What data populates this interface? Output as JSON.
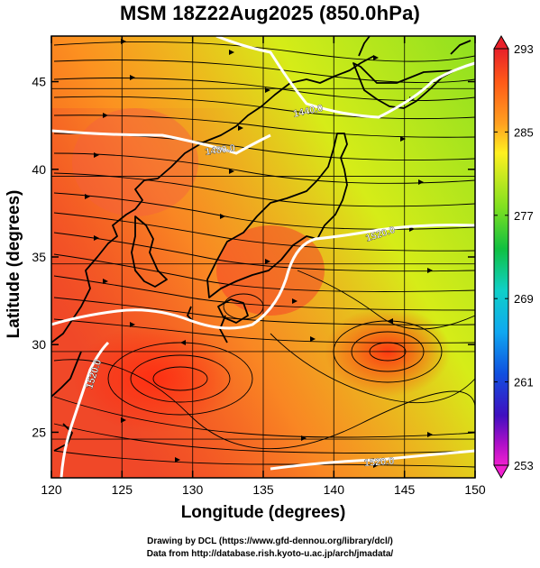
{
  "title": "MSM 18Z22Aug2025 (850.0hPa)",
  "xlabel": "Longitude (degrees)",
  "ylabel": "Latitude  (degrees)",
  "credits": {
    "line1": "Drawing by DCL (https://www.gfd-dennou.org/library/dcl/)",
    "line2": "Data from http://database.rish.kyoto-u.ac.jp/arch/jmadata/"
  },
  "chart_data": {
    "type": "heatmap",
    "field": "temperature with geopotential height contours and streamlines",
    "xlim": [
      120,
      150
    ],
    "ylim": [
      22.4,
      47.6
    ],
    "x_ticks": [
      120,
      125,
      130,
      135,
      140,
      145,
      150
    ],
    "y_ticks": [
      25,
      30,
      35,
      40,
      45
    ],
    "colorbar": {
      "min": 253,
      "max": 293,
      "ticks": [
        293,
        285,
        277,
        269,
        261,
        253
      ]
    },
    "contours": [
      {
        "label": "1440.0"
      },
      {
        "label": "1480.0"
      },
      {
        "label": "1520.0"
      },
      {
        "label": "1520.0"
      },
      {
        "label": "1520.0"
      }
    ]
  }
}
